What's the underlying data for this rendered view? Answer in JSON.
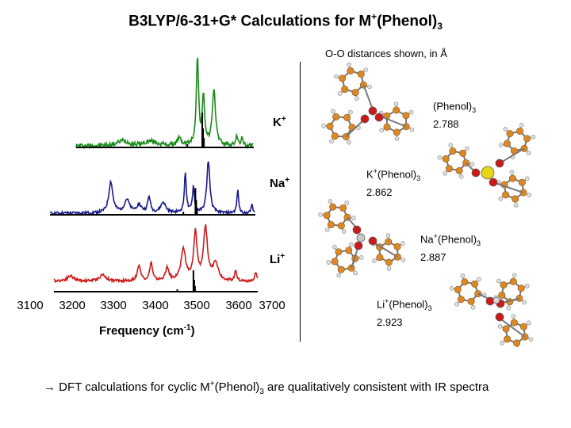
{
  "title": {
    "main": "B3LYP/6-31+G* Calculations for M",
    "sup": "+",
    "mid": "(Phenol)",
    "sub": "3"
  },
  "chart_data": {
    "type": "line",
    "xlabel": "Frequency (cm-1)",
    "xlabel_main": "Frequency (cm",
    "xlabel_sup": "-1",
    "xlabel_end": ")",
    "xlim": [
      3100,
      3700
    ],
    "x_ticks": [
      "3100",
      "3200",
      "3300",
      "3400",
      "3500",
      "3600",
      "3700"
    ],
    "series": [
      {
        "name": "K+",
        "label": "K",
        "label_sup": "+",
        "color": "#1a8a1a",
        "peaks": [
          {
            "x": 3330,
            "height": 0.06,
            "width": 30
          },
          {
            "x": 3400,
            "height": 0.05,
            "width": 40
          },
          {
            "x": 3515,
            "height": 1.0,
            "width": 7
          },
          {
            "x": 3530,
            "height": 0.55,
            "width": 7
          },
          {
            "x": 3556,
            "height": 0.62,
            "width": 10
          },
          {
            "x": 3470,
            "height": 0.08,
            "width": 12
          },
          {
            "x": 3612,
            "height": 0.12,
            "width": 5
          },
          {
            "x": 3625,
            "height": 0.1,
            "width": 5
          }
        ],
        "calc_sticks": [
          {
            "x": 3490,
            "height": 0.05
          },
          {
            "x": 3527,
            "height": 0.55
          },
          {
            "x": 3529,
            "height": 0.3
          },
          {
            "x": 3531,
            "height": 0.15
          }
        ]
      },
      {
        "name": "Na+",
        "label": "Na",
        "label_sup": "+",
        "color": "#1a1a8a",
        "peaks": [
          {
            "x": 3300,
            "height": 0.6,
            "width": 12
          },
          {
            "x": 3340,
            "height": 0.25,
            "width": 15
          },
          {
            "x": 3370,
            "height": 0.15,
            "width": 15
          },
          {
            "x": 3395,
            "height": 0.3,
            "width": 8
          },
          {
            "x": 3430,
            "height": 0.2,
            "width": 15
          },
          {
            "x": 3485,
            "height": 0.75,
            "width": 6
          },
          {
            "x": 3505,
            "height": 0.5,
            "width": 6
          },
          {
            "x": 3542,
            "height": 1.0,
            "width": 9
          },
          {
            "x": 3615,
            "height": 0.45,
            "width": 5
          },
          {
            "x": 3650,
            "height": 0.2,
            "width": 4
          }
        ],
        "calc_sticks": [
          {
            "x": 3480,
            "height": 0.05
          },
          {
            "x": 3510,
            "height": 0.45
          },
          {
            "x": 3512,
            "height": 0.25
          },
          {
            "x": 3514,
            "height": 0.12
          }
        ]
      },
      {
        "name": "Li+",
        "label": "Li",
        "label_sup": "+",
        "color": "#cc1a1a",
        "peaks": [
          {
            "x": 3130,
            "height": 0.12,
            "width": 15
          },
          {
            "x": 3200,
            "height": 0.1,
            "width": 20
          },
          {
            "x": 3280,
            "height": 0.12,
            "width": 20
          },
          {
            "x": 3370,
            "height": 0.3,
            "width": 10
          },
          {
            "x": 3400,
            "height": 0.35,
            "width": 8
          },
          {
            "x": 3440,
            "height": 0.25,
            "width": 10
          },
          {
            "x": 3480,
            "height": 0.6,
            "width": 14
          },
          {
            "x": 3510,
            "height": 0.9,
            "width": 10
          },
          {
            "x": 3535,
            "height": 1.0,
            "width": 12
          },
          {
            "x": 3560,
            "height": 0.35,
            "width": 15
          },
          {
            "x": 3610,
            "height": 0.2,
            "width": 6
          },
          {
            "x": 3660,
            "height": 0.18,
            "width": 5
          }
        ],
        "calc_sticks": [
          {
            "x": 3465,
            "height": 0.05
          },
          {
            "x": 3505,
            "height": 0.45
          },
          {
            "x": 3507,
            "height": 0.25
          },
          {
            "x": 3509,
            "height": 0.12
          }
        ]
      }
    ]
  },
  "oo_note": "O-O distances shown, in Å",
  "structures": [
    {
      "prefix": "",
      "sup": "",
      "name": "(Phenol)",
      "sub": "3",
      "distance": "2.788"
    },
    {
      "prefix": "K",
      "sup": "+",
      "name": "(Phenol)",
      "sub": "3",
      "distance": "2.862"
    },
    {
      "prefix": "Na",
      "sup": "+",
      "name": "(Phenol)",
      "sub": "3",
      "distance": "2.887"
    },
    {
      "prefix": "Li",
      "sup": "+",
      "name": "(Phenol)",
      "sub": "3",
      "distance": "2.923"
    }
  ],
  "conclusion": {
    "arrow": "→",
    "text1": " DFT calculations for cyclic M",
    "sup": "+",
    "text2": "(Phenol)",
    "sub": "3",
    "text3": " are qualitatively consistent with IR spectra"
  },
  "colors": {
    "carbon": "#d9892a",
    "oxygen": "#cc1a1a",
    "hydrogen": "#e0e0e0",
    "potassium": "#e6d61a",
    "sodium": "#c8c8c8",
    "lithium": "#d8d8d8"
  }
}
